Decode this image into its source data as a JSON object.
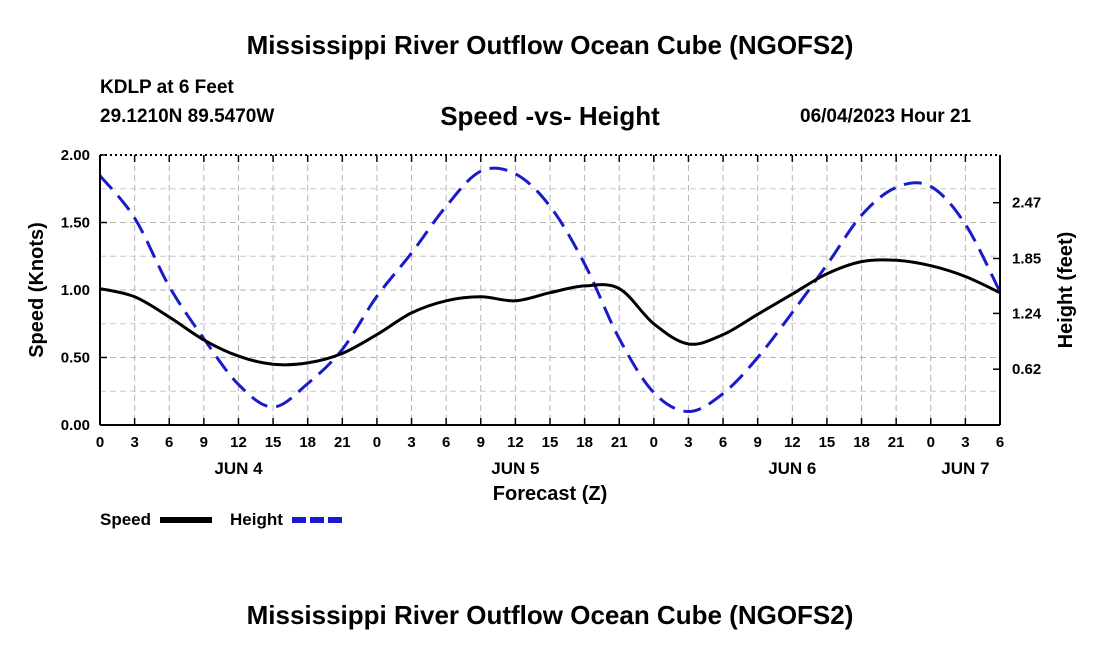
{
  "header": {
    "title": "Mississippi River Outflow Ocean Cube (NGOFS2)",
    "station": "KDLP at 6 Feet",
    "coords": "29.1210N  89.5470W",
    "datetime": "06/04/2023 Hour 21",
    "footer_title": "Mississippi River Outflow Ocean Cube (NGOFS2)"
  },
  "chart_data": {
    "type": "line",
    "title": "Speed -vs- Height",
    "xlabel": "Forecast (Z)",
    "ylabel": "Speed (Knots)",
    "y2label": "Height (feet)",
    "x_range": [
      0,
      78
    ],
    "ylim": [
      0,
      2.0
    ],
    "y2lim": [
      0,
      3.0
    ],
    "y_ticks": [
      "0.00",
      "0.50",
      "1.00",
      "1.50",
      "2.00"
    ],
    "y_tick_values": [
      0,
      0.5,
      1.0,
      1.5,
      2.0
    ],
    "y2_ticks": [
      "0.62",
      "1.24",
      "1.85",
      "2.47"
    ],
    "y2_tick_values": [
      0.62,
      1.24,
      1.85,
      2.47
    ],
    "x_tick_hours": [
      0,
      3,
      6,
      9,
      12,
      15,
      18,
      21,
      24,
      27,
      30,
      33,
      36,
      39,
      42,
      45,
      48,
      51,
      54,
      57,
      60,
      63,
      66,
      69,
      72,
      75,
      78
    ],
    "x_tick_labels": [
      "0",
      "3",
      "6",
      "9",
      "12",
      "15",
      "18",
      "21",
      "0",
      "3",
      "6",
      "9",
      "12",
      "15",
      "18",
      "21",
      "0",
      "3",
      "6",
      "9",
      "12",
      "15",
      "18",
      "21",
      "0",
      "3",
      "6"
    ],
    "day_labels": [
      {
        "label": "JUN 4",
        "hour": 12
      },
      {
        "label": "JUN 5",
        "hour": 36
      },
      {
        "label": "JUN 6",
        "hour": 60
      },
      {
        "label": "JUN 7",
        "hour": 75
      }
    ],
    "grid": true,
    "series": [
      {
        "name": "Speed",
        "axis": "left",
        "color": "#000000",
        "dash": "solid",
        "x": [
          0,
          3,
          6,
          9,
          12,
          15,
          18,
          21,
          24,
          27,
          30,
          33,
          36,
          39,
          42,
          45,
          48,
          51,
          54,
          57,
          60,
          63,
          66,
          69,
          72,
          75,
          78
        ],
        "values": [
          1.01,
          0.95,
          0.8,
          0.63,
          0.51,
          0.45,
          0.46,
          0.53,
          0.67,
          0.83,
          0.92,
          0.95,
          0.92,
          0.98,
          1.03,
          1.01,
          0.75,
          0.6,
          0.67,
          0.82,
          0.97,
          1.12,
          1.21,
          1.22,
          1.18,
          1.1,
          0.98
        ]
      },
      {
        "name": "Height",
        "axis": "right",
        "color": "#1a1acc",
        "dash": "dashed",
        "x": [
          0,
          3,
          6,
          9,
          12,
          15,
          18,
          21,
          24,
          27,
          30,
          33,
          36,
          39,
          42,
          45,
          48,
          51,
          54,
          57,
          60,
          63,
          66,
          69,
          72,
          75,
          78
        ],
        "values": [
          2.77,
          2.3,
          1.54,
          0.96,
          0.45,
          0.2,
          0.46,
          0.84,
          1.43,
          1.91,
          2.43,
          2.82,
          2.79,
          2.43,
          1.79,
          0.96,
          0.36,
          0.15,
          0.35,
          0.75,
          1.25,
          1.78,
          2.33,
          2.64,
          2.65,
          2.23,
          1.48
        ]
      }
    ],
    "legend": [
      {
        "label": "Speed",
        "color": "#000000",
        "dash": "solid"
      },
      {
        "label": "Height",
        "color": "#1a1acc",
        "dash": "dashed"
      }
    ]
  }
}
